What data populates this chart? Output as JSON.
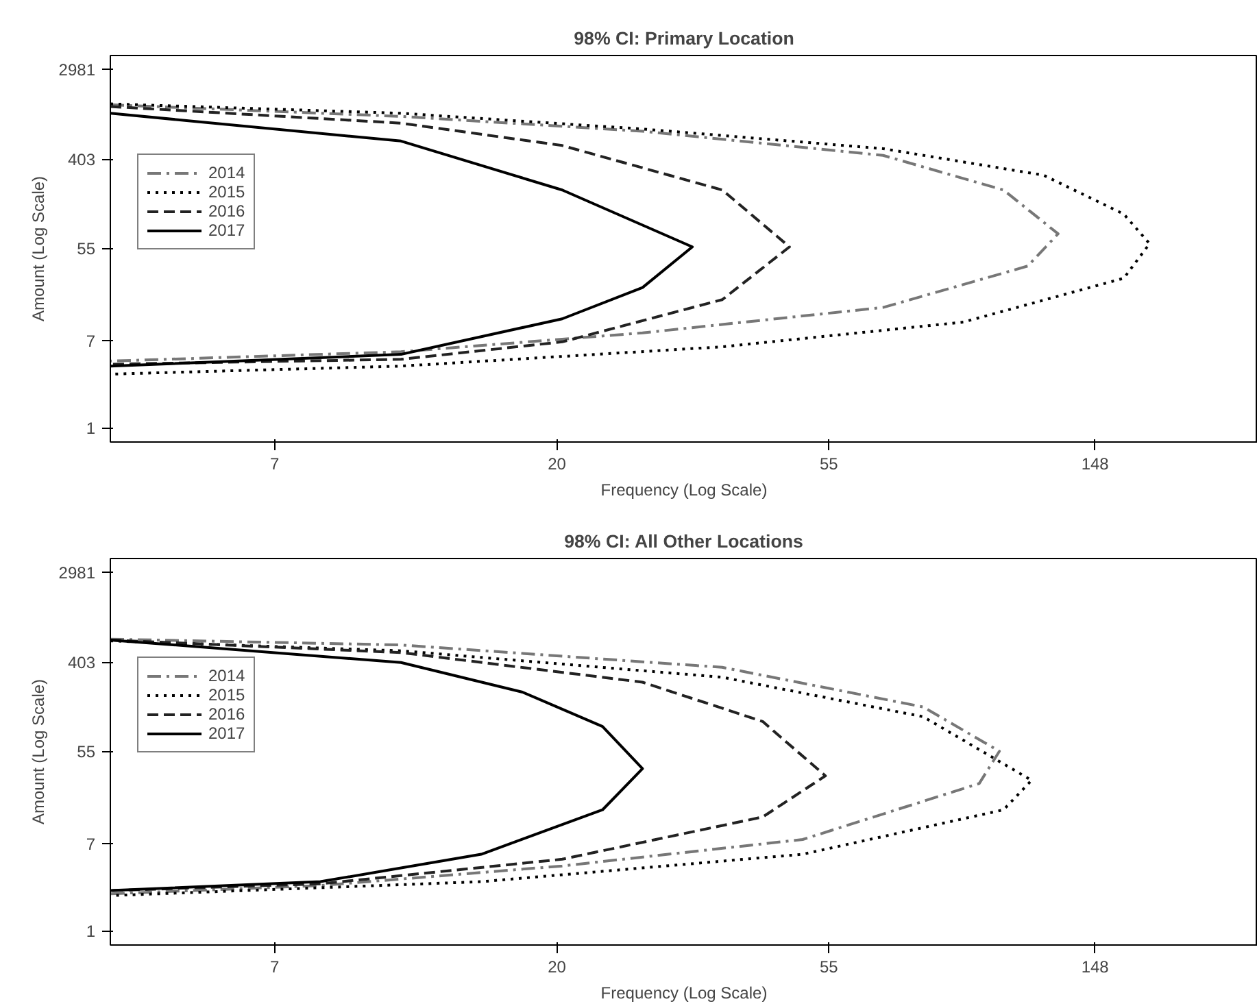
{
  "chart_data": [
    {
      "type": "line",
      "title": "98% CI: Primary Location",
      "xlabel": "Frequency (Log Scale)",
      "ylabel": "Amount (Log Scale)",
      "log": "xy",
      "grid": false,
      "legend": "top left",
      "xlim": [
        3.8,
        271
      ],
      "ylim": [
        0.73,
        4060
      ],
      "xticks": [
        7,
        20,
        55,
        148
      ],
      "yticks": [
        1,
        7,
        55,
        403,
        2981
      ],
      "series": [
        {
          "name": "2014",
          "color": "#777777",
          "line_style": "dashdot",
          "x": [
            3.8,
            11.2,
            27.5,
            67.3,
            105.3,
            129.0,
            115.2,
            67.3,
            27.5,
            11.2,
            3.8
          ],
          "values": [
            1353,
            1043,
            750,
            437,
            202,
            76,
            37.0,
            14.7,
            8.33,
            5.47,
            4.44
          ]
        },
        {
          "name": "2015",
          "color": "#000000",
          "line_style": "dotted",
          "x": [
            3.8,
            11.2,
            27.5,
            67.3,
            122.2,
            164.7,
            181.3,
            164.7,
            90.7,
            37.0,
            11.2,
            3.8
          ],
          "values": [
            1380,
            1119,
            788,
            508,
            281,
            118,
            61,
            28.2,
            10.6,
            6.11,
            3.97,
            3.32
          ]
        },
        {
          "name": "2016",
          "color": "#222222",
          "line_style": "dashed",
          "x": [
            3.8,
            11.2,
            20.4,
            37.0,
            47.5,
            37.0,
            20.4,
            11.2,
            3.8
          ],
          "values": [
            1300,
            898,
            545,
            202,
            56.8,
            17.5,
            6.82,
            4.62,
            4.14
          ]
        },
        {
          "name": "2017",
          "color": "#000000",
          "line_style": "solid",
          "x": [
            3.8,
            11.2,
            20.4,
            33.1,
            27.5,
            20.4,
            11.2,
            3.8
          ],
          "values": [
            1119,
            602,
            202,
            56.8,
            22.9,
            11.4,
            5.16,
            3.97
          ]
        }
      ]
    },
    {
      "type": "line",
      "title": "98% CI: All Other Locations",
      "xlabel": "Frequency (Log Scale)",
      "ylabel": "Amount (Log Scale)",
      "log": "xy",
      "grid": false,
      "legend": "top left",
      "xlim": [
        3.8,
        271
      ],
      "ylim": [
        0.73,
        4060
      ],
      "xticks": [
        7,
        20,
        55,
        148
      ],
      "yticks": [
        1,
        7,
        55,
        403,
        2981
      ],
      "series": [
        {
          "name": "2014",
          "color": "#777777",
          "line_style": "dashdot",
          "x": [
            3.8,
            11.2,
            37.0,
            78.1,
            103.7,
            96.2,
            49.9,
            20.4,
            8.3,
            3.8
          ],
          "values": [
            672,
            590,
            358,
            148,
            55.1,
            26.8,
            7.69,
            4.26,
            2.75,
            2.29
          ]
        },
        {
          "name": "2015",
          "color": "#000000",
          "line_style": "dotted",
          "x": [
            3.8,
            11.2,
            37.0,
            78.1,
            116.9,
            105.3,
            49.9,
            15.1,
            3.8
          ],
          "values": [
            646,
            518,
            287,
            119,
            28.8,
            14.9,
            5.53,
            3.0,
            2.2
          ]
        },
        {
          "name": "2016",
          "color": "#222222",
          "line_style": "dashed",
          "x": [
            3.8,
            11.2,
            27.5,
            43.0,
            54.3,
            43.0,
            20.4,
            8.3,
            3.8
          ],
          "values": [
            659,
            498,
            257,
            107,
            31.8,
            12.7,
            4.95,
            2.86,
            2.46
          ]
        },
        {
          "name": "2017",
          "color": "#000000",
          "line_style": "solid",
          "x": [
            3.8,
            11.2,
            17.6,
            23.7,
            27.5,
            23.7,
            15.1,
            8.3,
            3.8
          ],
          "values": [
            659,
            399,
            206,
            95.6,
            37.3,
            14.9,
            5.53,
            3.0,
            2.46
          ]
        }
      ]
    }
  ]
}
